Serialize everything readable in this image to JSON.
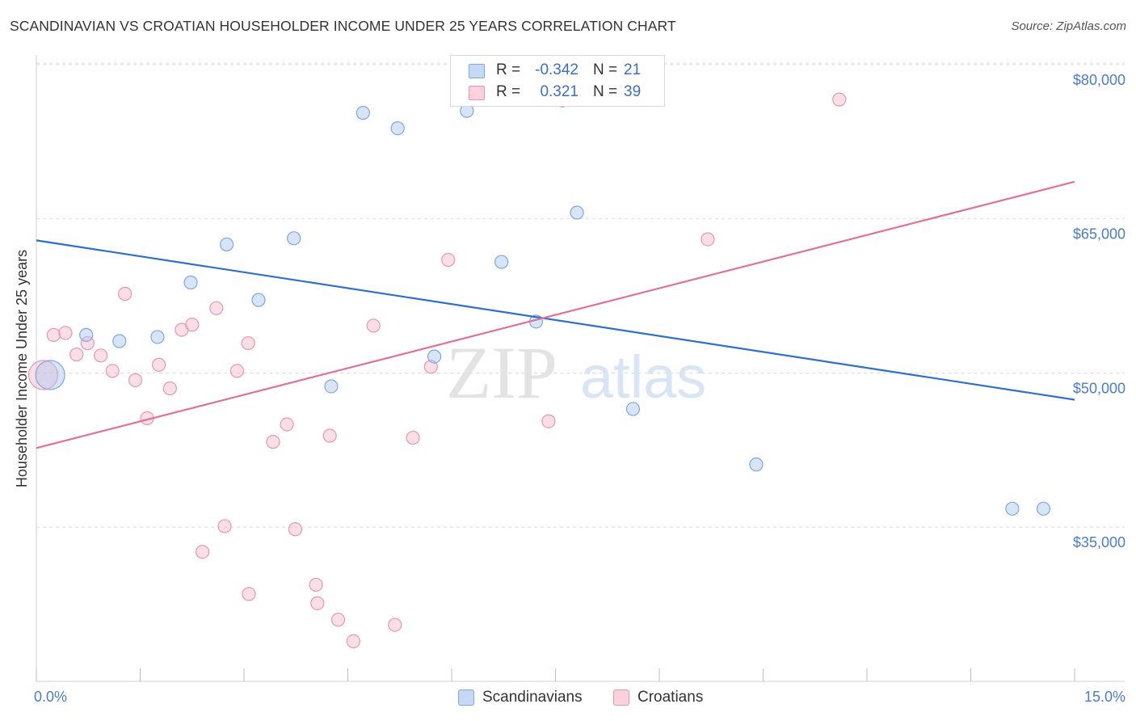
{
  "header": {
    "title": "SCANDINAVIAN VS CROATIAN HOUSEHOLDER INCOME UNDER 25 YEARS CORRELATION CHART",
    "source": "Source: ZipAtlas.com"
  },
  "watermark": {
    "text_zip": "ZIP",
    "text_atlas": "atlas"
  },
  "legend": {
    "rows": [
      {
        "r_label": "R =",
        "r_value": "-0.342",
        "n_label": "N =",
        "n_value": "21",
        "color": "#a8c6f0"
      },
      {
        "r_label": "R =",
        "r_value": "0.321",
        "n_label": "N =",
        "n_value": "39",
        "color": "#f6b8c9"
      }
    ]
  },
  "bottom_legend": {
    "items": [
      {
        "label": "Scandinavians",
        "color": "#a8c6f0"
      },
      {
        "label": "Croatians",
        "color": "#f6b8c9"
      }
    ]
  },
  "chart_data": {
    "type": "scatter",
    "title": "SCANDINAVIAN VS CROATIAN HOUSEHOLDER INCOME UNDER 25 YEARS CORRELATION CHART",
    "xlabel": "",
    "ylabel": "Householder Income Under 25 years",
    "xlim": [
      0,
      15
    ],
    "ylim": [
      20000,
      84000
    ],
    "x_tick_labels": [
      "0.0%",
      "15.0%"
    ],
    "y_ticks": [
      35000,
      50000,
      65000,
      80000
    ],
    "y_tick_labels": [
      "$35,000",
      "$50,000",
      "$65,000",
      "$80,000"
    ],
    "grid": "horizontal dashed",
    "legend_position": "top-center",
    "series": [
      {
        "name": "Scandinavians",
        "color": "#a8c6f0",
        "line_color": "#2e6fce",
        "trend": {
          "x": [
            0,
            15
          ],
          "y": [
            62900,
            47400
          ]
        },
        "points": [
          {
            "x": 0.2,
            "y": 49800,
            "big": true
          },
          {
            "x": 0.72,
            "y": 53700
          },
          {
            "x": 1.2,
            "y": 53100
          },
          {
            "x": 1.75,
            "y": 53500
          },
          {
            "x": 2.23,
            "y": 58800
          },
          {
            "x": 2.75,
            "y": 62500
          },
          {
            "x": 3.21,
            "y": 57100
          },
          {
            "x": 3.72,
            "y": 63100
          },
          {
            "x": 4.26,
            "y": 48700
          },
          {
            "x": 4.72,
            "y": 75300
          },
          {
            "x": 5.22,
            "y": 73800
          },
          {
            "x": 5.75,
            "y": 51600
          },
          {
            "x": 6.22,
            "y": 75500
          },
          {
            "x": 6.72,
            "y": 60800
          },
          {
            "x": 7.22,
            "y": 55000
          },
          {
            "x": 7.81,
            "y": 65600
          },
          {
            "x": 8.62,
            "y": 46500
          },
          {
            "x": 8.5,
            "y": 78100
          },
          {
            "x": 10.4,
            "y": 41100
          },
          {
            "x": 14.1,
            "y": 36800
          },
          {
            "x": 14.55,
            "y": 36800
          }
        ]
      },
      {
        "name": "Croatians",
        "color": "#f6b8c9",
        "line_color": "#e07098",
        "trend": {
          "x": [
            0,
            15
          ],
          "y": [
            42700,
            68600
          ]
        },
        "points": [
          {
            "x": 0.1,
            "y": 49800,
            "big": true
          },
          {
            "x": 0.25,
            "y": 53700
          },
          {
            "x": 0.42,
            "y": 53900
          },
          {
            "x": 0.58,
            "y": 51800
          },
          {
            "x": 0.74,
            "y": 52900
          },
          {
            "x": 0.93,
            "y": 51700
          },
          {
            "x": 1.1,
            "y": 50200
          },
          {
            "x": 1.28,
            "y": 57700
          },
          {
            "x": 1.43,
            "y": 49300
          },
          {
            "x": 1.6,
            "y": 45600
          },
          {
            "x": 1.77,
            "y": 50800
          },
          {
            "x": 1.93,
            "y": 48500
          },
          {
            "x": 2.1,
            "y": 54200
          },
          {
            "x": 2.25,
            "y": 54700
          },
          {
            "x": 2.4,
            "y": 32600
          },
          {
            "x": 2.6,
            "y": 56300
          },
          {
            "x": 2.72,
            "y": 35100
          },
          {
            "x": 2.9,
            "y": 50200
          },
          {
            "x": 3.07,
            "y": 28500
          },
          {
            "x": 3.06,
            "y": 52900
          },
          {
            "x": 3.42,
            "y": 43300
          },
          {
            "x": 3.62,
            "y": 45000
          },
          {
            "x": 3.74,
            "y": 34800
          },
          {
            "x": 4.04,
            "y": 29400
          },
          {
            "x": 4.06,
            "y": 27600
          },
          {
            "x": 4.24,
            "y": 43900
          },
          {
            "x": 4.36,
            "y": 26000
          },
          {
            "x": 4.58,
            "y": 23900
          },
          {
            "x": 4.87,
            "y": 54600
          },
          {
            "x": 5.18,
            "y": 25500
          },
          {
            "x": 5.44,
            "y": 43700
          },
          {
            "x": 5.7,
            "y": 50600
          },
          {
            "x": 5.95,
            "y": 61000
          },
          {
            "x": 6.5,
            "y": 78600
          },
          {
            "x": 7.02,
            "y": 78200
          },
          {
            "x": 7.4,
            "y": 45300
          },
          {
            "x": 7.6,
            "y": 76500
          },
          {
            "x": 9.7,
            "y": 63000
          },
          {
            "x": 11.6,
            "y": 76600
          }
        ]
      }
    ]
  }
}
